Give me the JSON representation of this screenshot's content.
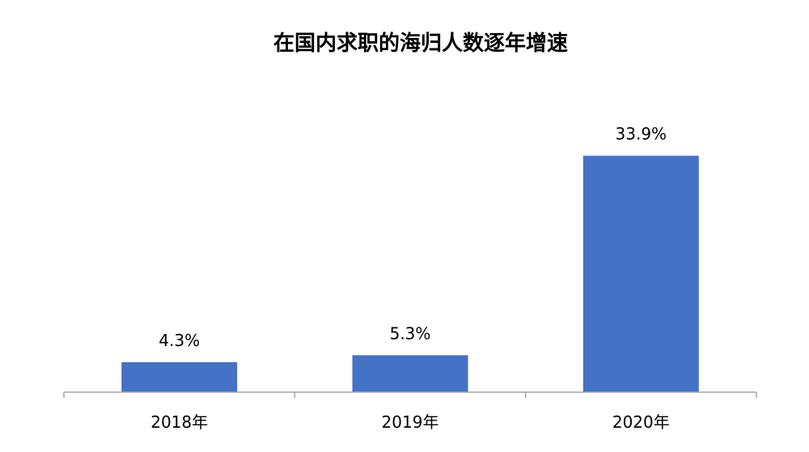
{
  "chart_data": {
    "type": "bar",
    "title": "在国内求职的海归人数逐年增速",
    "categories": [
      "2018年",
      "2019年",
      "2020年"
    ],
    "values": [
      4.3,
      5.3,
      33.9
    ],
    "data_labels": [
      "4.3%",
      "5.3%",
      "33.9%"
    ],
    "ylim": [
      0,
      40
    ],
    "grid": false,
    "legend": "none",
    "bar_color": "#4472C4",
    "axis_color": "#A6A6A6"
  }
}
